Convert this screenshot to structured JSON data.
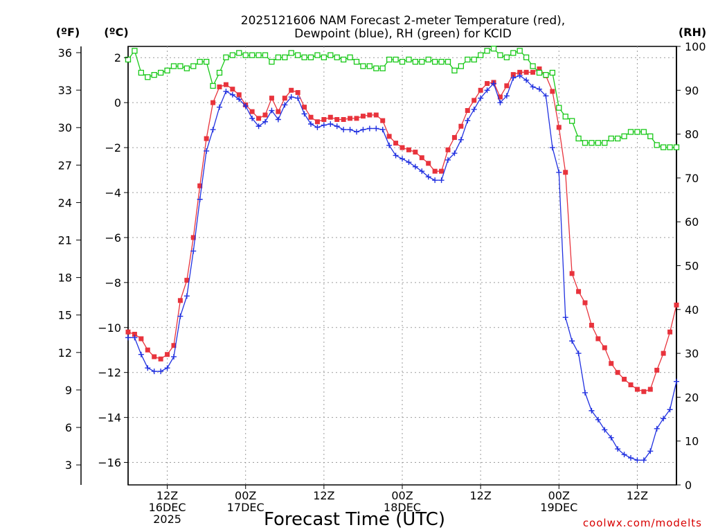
{
  "chart_data": {
    "type": "line",
    "title": "2025121606 NAM Forecast 2-meter Temperature (red),",
    "subtitle": "Dewpoint (blue), RH (green) for KCID",
    "xlabel": "Forecast Time (UTC)",
    "unit_labels": {
      "fahrenheit": "(ºF)",
      "celsius": "(ºC)",
      "rh": "(RH)"
    },
    "credit": "coolwx.com/modelts",
    "x_start_hour": 6,
    "x_end_hour": 90,
    "x_ticks": [
      {
        "hour": 12,
        "lines": [
          "12Z",
          "16DEC",
          "2025"
        ]
      },
      {
        "hour": 24,
        "lines": [
          "00Z",
          "17DEC"
        ]
      },
      {
        "hour": 36,
        "lines": [
          "12Z"
        ]
      },
      {
        "hour": 48,
        "lines": [
          "00Z",
          "18DEC"
        ]
      },
      {
        "hour": 60,
        "lines": [
          "12Z"
        ]
      },
      {
        "hour": 72,
        "lines": [
          "00Z",
          "19DEC"
        ]
      },
      {
        "hour": 84,
        "lines": [
          "12Z"
        ]
      }
    ],
    "celsius_axis": {
      "ylim": [
        -17,
        2.5
      ],
      "ticks": [
        2,
        0,
        -2,
        -4,
        -6,
        -8,
        -10,
        -12,
        -14,
        -16
      ]
    },
    "fahrenheit_axis": {
      "ticks": [
        36,
        33,
        30,
        27,
        24,
        21,
        18,
        15,
        12,
        9,
        6,
        3
      ]
    },
    "rh_axis": {
      "ylim": [
        0,
        100
      ],
      "ticks": [
        100,
        90,
        80,
        70,
        60,
        50,
        40,
        30,
        20,
        10,
        0
      ]
    },
    "series": [
      {
        "name": "Temperature",
        "color": "#e8333c",
        "axis": "celsius",
        "marker": "filled-square",
        "points": [
          [
            6,
            -10.2
          ],
          [
            7,
            -10.3
          ],
          [
            8,
            -10.5
          ],
          [
            9,
            -11.0
          ],
          [
            10,
            -11.3
          ],
          [
            11,
            -11.4
          ],
          [
            12,
            -11.2
          ],
          [
            13,
            -10.8
          ],
          [
            14,
            -8.8
          ],
          [
            15,
            -7.9
          ],
          [
            16,
            -6.0
          ],
          [
            17,
            -3.7
          ],
          [
            18,
            -1.6
          ],
          [
            19,
            0
          ],
          [
            20,
            0.7
          ],
          [
            21,
            0.8
          ],
          [
            22,
            0.6
          ],
          [
            23,
            0.35
          ],
          [
            24,
            -0.1
          ],
          [
            25,
            -0.4
          ],
          [
            26,
            -0.7
          ],
          [
            27,
            -0.55
          ],
          [
            28,
            0.2
          ],
          [
            29,
            -0.4
          ],
          [
            30,
            0.2
          ],
          [
            31,
            0.55
          ],
          [
            32,
            0.45
          ],
          [
            33,
            -0.2
          ],
          [
            34,
            -0.65
          ],
          [
            35,
            -0.85
          ],
          [
            36,
            -0.75
          ],
          [
            37,
            -0.65
          ],
          [
            38,
            -0.75
          ],
          [
            39,
            -0.75
          ],
          [
            40,
            -0.7
          ],
          [
            41,
            -0.7
          ],
          [
            42,
            -0.6
          ],
          [
            43,
            -0.55
          ],
          [
            44,
            -0.55
          ],
          [
            45,
            -0.8
          ],
          [
            46,
            -1.5
          ],
          [
            47,
            -1.8
          ],
          [
            48,
            -2.0
          ],
          [
            49,
            -2.1
          ],
          [
            50,
            -2.2
          ],
          [
            51,
            -2.45
          ],
          [
            52,
            -2.7
          ],
          [
            53,
            -3.05
          ],
          [
            54,
            -3.05
          ],
          [
            55,
            -2.1
          ],
          [
            56,
            -1.55
          ],
          [
            57,
            -1.05
          ],
          [
            58,
            -0.35
          ],
          [
            59,
            0.1
          ],
          [
            60,
            0.55
          ],
          [
            61,
            0.85
          ],
          [
            62,
            0.9
          ],
          [
            63,
            0.25
          ],
          [
            64,
            0.75
          ],
          [
            65,
            1.25
          ],
          [
            66,
            1.35
          ],
          [
            67,
            1.35
          ],
          [
            68,
            1.35
          ],
          [
            69,
            1.5
          ],
          [
            70,
            1.2
          ],
          [
            71,
            0.5
          ],
          [
            72,
            -1.1
          ],
          [
            73,
            -3.1
          ],
          [
            74,
            -7.6
          ],
          [
            75,
            -8.4
          ],
          [
            76,
            -8.9
          ],
          [
            77,
            -9.9
          ],
          [
            78,
            -10.5
          ],
          [
            79,
            -10.9
          ],
          [
            80,
            -11.6
          ],
          [
            81,
            -12.0
          ],
          [
            82,
            -12.3
          ],
          [
            83,
            -12.55
          ],
          [
            84,
            -12.75
          ],
          [
            85,
            -12.85
          ],
          [
            86,
            -12.75
          ],
          [
            87,
            -11.9
          ],
          [
            88,
            -11.15
          ],
          [
            89,
            -10.2
          ],
          [
            90,
            -9.0
          ]
        ]
      },
      {
        "name": "Dewpoint",
        "color": "#2030e0",
        "axis": "celsius",
        "marker": "plus",
        "points": [
          [
            6,
            -10.45
          ],
          [
            7,
            -10.45
          ],
          [
            8,
            -11.2
          ],
          [
            9,
            -11.8
          ],
          [
            10,
            -11.95
          ],
          [
            11,
            -11.95
          ],
          [
            12,
            -11.8
          ],
          [
            13,
            -11.3
          ],
          [
            14,
            -9.5
          ],
          [
            15,
            -8.6
          ],
          [
            16,
            -6.6
          ],
          [
            17,
            -4.3
          ],
          [
            18,
            -2.15
          ],
          [
            19,
            -1.2
          ],
          [
            20,
            -0.2
          ],
          [
            21,
            0.5
          ],
          [
            22,
            0.35
          ],
          [
            23,
            0.15
          ],
          [
            24,
            -0.15
          ],
          [
            25,
            -0.7
          ],
          [
            26,
            -1.05
          ],
          [
            27,
            -0.85
          ],
          [
            28,
            -0.35
          ],
          [
            29,
            -0.75
          ],
          [
            30,
            -0.1
          ],
          [
            31,
            0.25
          ],
          [
            32,
            0.2
          ],
          [
            33,
            -0.5
          ],
          [
            34,
            -0.95
          ],
          [
            35,
            -1.1
          ],
          [
            36,
            -1.0
          ],
          [
            37,
            -0.95
          ],
          [
            38,
            -1.05
          ],
          [
            39,
            -1.2
          ],
          [
            40,
            -1.2
          ],
          [
            41,
            -1.3
          ],
          [
            42,
            -1.2
          ],
          [
            43,
            -1.15
          ],
          [
            44,
            -1.15
          ],
          [
            45,
            -1.2
          ],
          [
            46,
            -1.9
          ],
          [
            47,
            -2.35
          ],
          [
            48,
            -2.5
          ],
          [
            49,
            -2.65
          ],
          [
            50,
            -2.85
          ],
          [
            51,
            -3.05
          ],
          [
            52,
            -3.3
          ],
          [
            53,
            -3.45
          ],
          [
            54,
            -3.45
          ],
          [
            55,
            -2.55
          ],
          [
            56,
            -2.25
          ],
          [
            57,
            -1.65
          ],
          [
            58,
            -0.8
          ],
          [
            59,
            -0.3
          ],
          [
            60,
            0.2
          ],
          [
            61,
            0.55
          ],
          [
            62,
            0.85
          ],
          [
            63,
            0
          ],
          [
            64,
            0.3
          ],
          [
            65,
            1.1
          ],
          [
            66,
            1.2
          ],
          [
            67,
            1.0
          ],
          [
            68,
            0.7
          ],
          [
            69,
            0.6
          ],
          [
            70,
            0.3
          ],
          [
            71,
            -2.0
          ],
          [
            72,
            -3.1
          ],
          [
            73,
            -9.55
          ],
          [
            74,
            -10.6
          ],
          [
            75,
            -11.15
          ],
          [
            76,
            -12.9
          ],
          [
            77,
            -13.7
          ],
          [
            78,
            -14.1
          ],
          [
            79,
            -14.55
          ],
          [
            80,
            -14.9
          ],
          [
            81,
            -15.4
          ],
          [
            82,
            -15.65
          ],
          [
            83,
            -15.8
          ],
          [
            84,
            -15.9
          ],
          [
            85,
            -15.9
          ],
          [
            86,
            -15.5
          ],
          [
            87,
            -14.5
          ],
          [
            88,
            -14.05
          ],
          [
            89,
            -13.65
          ],
          [
            90,
            -12.4
          ]
        ]
      },
      {
        "name": "RH",
        "color": "#18c818",
        "axis": "rh",
        "marker": "open-square",
        "points": [
          [
            6,
            97
          ],
          [
            7,
            99
          ],
          [
            8,
            94
          ],
          [
            9,
            93
          ],
          [
            10,
            93.5
          ],
          [
            11,
            94
          ],
          [
            12,
            94.5
          ],
          [
            13,
            95.5
          ],
          [
            14,
            95.5
          ],
          [
            15,
            95
          ],
          [
            16,
            95.5
          ],
          [
            17,
            96.5
          ],
          [
            18,
            96.5
          ],
          [
            19,
            91
          ],
          [
            20,
            94
          ],
          [
            21,
            97.5
          ],
          [
            22,
            98
          ],
          [
            23,
            98.5
          ],
          [
            24,
            98
          ],
          [
            25,
            98
          ],
          [
            26,
            98
          ],
          [
            27,
            98
          ],
          [
            28,
            96.5
          ],
          [
            29,
            97.5
          ],
          [
            30,
            97.5
          ],
          [
            31,
            98.5
          ],
          [
            32,
            98
          ],
          [
            33,
            97.5
          ],
          [
            34,
            97.5
          ],
          [
            35,
            98
          ],
          [
            36,
            97.5
          ],
          [
            37,
            98
          ],
          [
            38,
            97.5
          ],
          [
            39,
            97
          ],
          [
            40,
            97.5
          ],
          [
            41,
            96.5
          ],
          [
            42,
            95.5
          ],
          [
            43,
            95.5
          ],
          [
            44,
            95
          ],
          [
            45,
            95
          ],
          [
            46,
            97
          ],
          [
            47,
            97
          ],
          [
            48,
            96.5
          ],
          [
            49,
            97
          ],
          [
            50,
            96.5
          ],
          [
            51,
            96.5
          ],
          [
            52,
            97
          ],
          [
            53,
            96.5
          ],
          [
            54,
            96.5
          ],
          [
            55,
            96.5
          ],
          [
            56,
            94.5
          ],
          [
            57,
            95.5
          ],
          [
            58,
            97
          ],
          [
            59,
            97
          ],
          [
            60,
            98
          ],
          [
            61,
            99
          ],
          [
            62,
            99.5
          ],
          [
            63,
            98
          ],
          [
            64,
            97.5
          ],
          [
            65,
            98.5
          ],
          [
            66,
            99
          ],
          [
            67,
            97.5
          ],
          [
            68,
            95.5
          ],
          [
            69,
            94
          ],
          [
            70,
            93.5
          ],
          [
            71,
            94
          ],
          [
            72,
            86
          ],
          [
            73,
            84
          ],
          [
            74,
            83
          ],
          [
            75,
            79
          ],
          [
            76,
            78
          ],
          [
            77,
            78
          ],
          [
            78,
            78
          ],
          [
            79,
            78
          ],
          [
            80,
            79
          ],
          [
            81,
            79
          ],
          [
            82,
            79.5
          ],
          [
            83,
            80.5
          ],
          [
            84,
            80.5
          ],
          [
            85,
            80.5
          ],
          [
            86,
            79.5
          ],
          [
            87,
            77.5
          ],
          [
            88,
            77
          ],
          [
            89,
            77
          ],
          [
            90,
            77
          ]
        ]
      }
    ]
  }
}
